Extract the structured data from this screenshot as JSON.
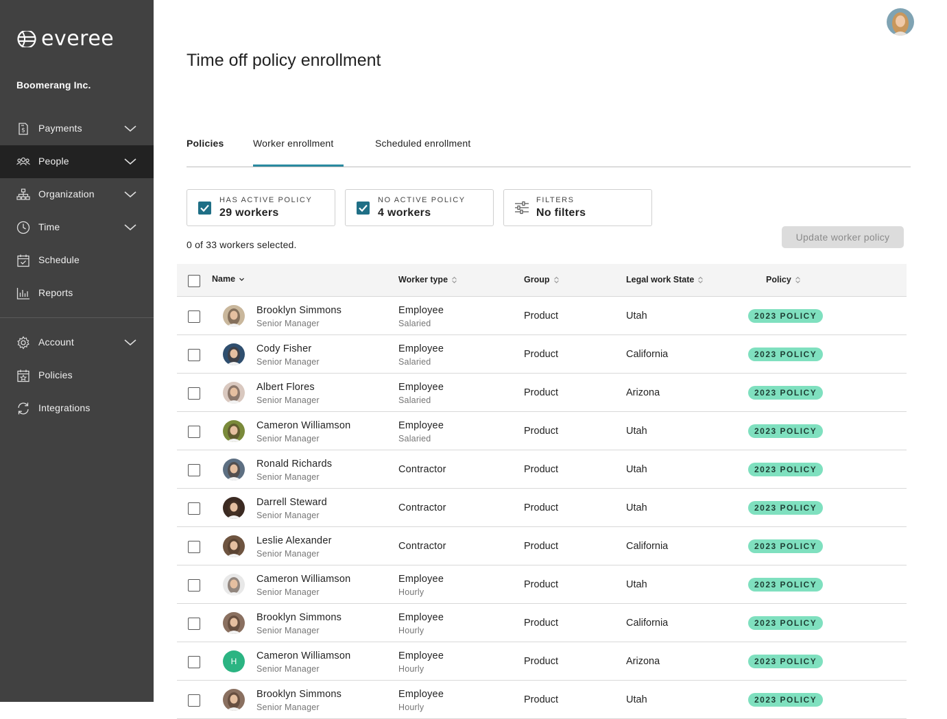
{
  "brand": {
    "name": "everee"
  },
  "company": "Boomerang Inc.",
  "nav": [
    {
      "label": "Payments",
      "icon": "payments-icon",
      "chevron": true,
      "active": false
    },
    {
      "label": "People",
      "icon": "people-icon",
      "chevron": true,
      "active": true
    },
    {
      "label": "Organization",
      "icon": "organization-icon",
      "chevron": true,
      "active": false
    },
    {
      "label": "Time",
      "icon": "clock-icon",
      "chevron": true,
      "active": false
    },
    {
      "label": "Schedule",
      "icon": "calendar-icon",
      "chevron": false,
      "active": false
    },
    {
      "label": "Reports",
      "icon": "bar-chart-icon",
      "chevron": false,
      "active": false
    },
    {
      "label": "Account",
      "icon": "gear-icon",
      "chevron": true,
      "active": false
    },
    {
      "label": "Policies",
      "icon": "policy-calendar-icon",
      "chevron": false,
      "active": false
    },
    {
      "label": "Integrations",
      "icon": "sync-icon",
      "chevron": false,
      "active": false
    }
  ],
  "page": {
    "title": "Time off policy enrollment"
  },
  "tabs": [
    {
      "label": "Policies",
      "active": false
    },
    {
      "label": "Worker enrollment",
      "active": true
    },
    {
      "label": "Scheduled enrollment",
      "active": false
    }
  ],
  "filters": [
    {
      "caption": "HAS ACTIVE POLICY",
      "value": "29 workers",
      "checked": true
    },
    {
      "caption": "NO ACTIVE POLICY",
      "value": "4 workers",
      "checked": true
    },
    {
      "caption": "FILTERS",
      "value": "No filters",
      "checked": false
    }
  ],
  "selection": {
    "count_text": "0 of 33 workers selected."
  },
  "actions": {
    "update_label": "Update worker policy"
  },
  "table": {
    "headers": {
      "name": "Name",
      "worker_type": "Worker type",
      "group": "Group",
      "state": "Legal work State",
      "policy": "Policy"
    },
    "rows": [
      {
        "name": "Brooklyn Simmons",
        "title": "Senior Manager",
        "type": "Employee",
        "subtype": "Salaried",
        "group": "Product",
        "state": "Utah",
        "policy": "2023 POLICY",
        "avatar": "photo",
        "tone": "#c9b79c"
      },
      {
        "name": "Cody Fisher",
        "title": "Senior Manager",
        "type": "Employee",
        "subtype": "Salaried",
        "group": "Product",
        "state": "California",
        "policy": "2023 POLICY",
        "avatar": "photo",
        "tone": "#2f4f6f"
      },
      {
        "name": "Albert Flores",
        "title": "Senior Manager",
        "type": "Employee",
        "subtype": "Salaried",
        "group": "Product",
        "state": "Arizona",
        "policy": "2023 POLICY",
        "avatar": "photo",
        "tone": "#d9c8bf"
      },
      {
        "name": "Cameron Williamson",
        "title": "Senior Manager",
        "type": "Employee",
        "subtype": "Salaried",
        "group": "Product",
        "state": "Utah",
        "policy": "2023 POLICY",
        "avatar": "photo",
        "tone": "#7a8a3a"
      },
      {
        "name": "Ronald Richards",
        "title": "Senior Manager",
        "type": "Contractor",
        "subtype": "",
        "group": "Product",
        "state": "Utah",
        "policy": "2023 POLICY",
        "avatar": "photo",
        "tone": "#5d6f82"
      },
      {
        "name": "Darrell Steward",
        "title": "Senior Manager",
        "type": "Contractor",
        "subtype": "",
        "group": "Product",
        "state": "Utah",
        "policy": "2023 POLICY",
        "avatar": "photo",
        "tone": "#3b2a22"
      },
      {
        "name": "Leslie Alexander",
        "title": "Senior Manager",
        "type": "Contractor",
        "subtype": "",
        "group": "Product",
        "state": "California",
        "policy": "2023 POLICY",
        "avatar": "photo",
        "tone": "#6e5440"
      },
      {
        "name": "Cameron Williamson",
        "title": "Senior Manager",
        "type": "Employee",
        "subtype": "Hourly",
        "group": "Product",
        "state": "Utah",
        "policy": "2023 POLICY",
        "avatar": "photo",
        "tone": "#e8e8e8"
      },
      {
        "name": "Brooklyn Simmons",
        "title": "Senior Manager",
        "type": "Employee",
        "subtype": "Hourly",
        "group": "Product",
        "state": "California",
        "policy": "2023 POLICY",
        "avatar": "photo",
        "tone": "#8a7060"
      },
      {
        "name": "Cameron Williamson",
        "title": "Senior Manager",
        "type": "Employee",
        "subtype": "Hourly",
        "group": "Product",
        "state": "Arizona",
        "policy": "2023 POLICY",
        "avatar": "initial",
        "initial": "H",
        "tone": "#2bb482"
      },
      {
        "name": "Brooklyn Simmons",
        "title": "Senior Manager",
        "type": "Employee",
        "subtype": "Hourly",
        "group": "Product",
        "state": "Utah",
        "policy": "2023 POLICY",
        "avatar": "photo",
        "tone": "#8a7060"
      }
    ]
  }
}
